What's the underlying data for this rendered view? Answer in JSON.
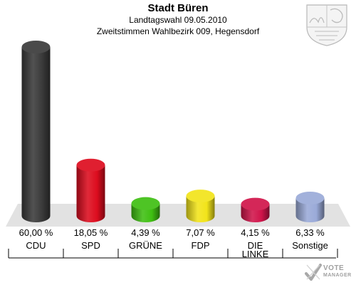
{
  "header": {
    "title": "Stadt Büren",
    "subtitle": "Landtagswahl 09.05.2010",
    "subtitle2": "Zweitstimmen Wahlbezirk 009, Hegensdorf"
  },
  "chart_data": {
    "type": "bar",
    "title": "Stadt Büren",
    "categories": [
      "CDU",
      "SPD",
      "GRÜNE",
      "FDP",
      "DIE LINKE",
      "Sonstige"
    ],
    "category_lines": [
      [
        "CDU"
      ],
      [
        "SPD"
      ],
      [
        "GRÜNE"
      ],
      [
        "FDP"
      ],
      [
        "DIE",
        "LINKE"
      ],
      [
        "Sonstige"
      ]
    ],
    "values": [
      60.0,
      18.05,
      4.39,
      7.07,
      4.15,
      6.33
    ],
    "value_labels": [
      "60,00 %",
      "18,05 %",
      "4,39 %",
      "7,07 %",
      "4,15 %",
      "6,33 %"
    ],
    "colors": [
      "#3a3a3a",
      "#dd0c1e",
      "#3fbf12",
      "#f2e41a",
      "#d0144a",
      "#9aaad8"
    ],
    "unit": "%",
    "ylim": [
      0,
      60
    ],
    "grid": false,
    "legend": "none"
  },
  "branding": {
    "logo_line1": "VOTE",
    "logo_line2": "MANAGER",
    "crest_icon": "nrw-coat-of-arms-icon"
  }
}
